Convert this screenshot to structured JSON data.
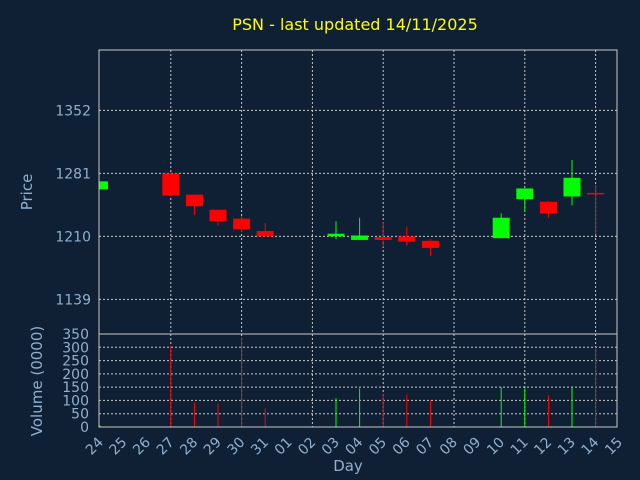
{
  "chart_data": {
    "type": "candlestick",
    "title": "PSN - last updated 14/11/2025",
    "ylabel": "Price",
    "ylabel_volume": "Volume (0000)",
    "xlabel": "Day",
    "colors": {
      "up": "#00ff00",
      "down": "#ff0000",
      "background": "#0f2034",
      "grid": "#c8c8c8",
      "title": "#ffff00",
      "axis_text": "#8fb0d0"
    },
    "grid": true,
    "price_ticks": [
      1139,
      1210,
      1281,
      1352
    ],
    "price_ylim": [
      1100,
      1420
    ],
    "volume_ticks": [
      0,
      50,
      100,
      150,
      200,
      250,
      300,
      350
    ],
    "volume_ylim": [
      0,
      350
    ],
    "x_labels": [
      "24",
      "25",
      "26",
      "27",
      "28",
      "29",
      "30",
      "31",
      "01",
      "02",
      "03",
      "04",
      "05",
      "06",
      "07",
      "08",
      "09",
      "10",
      "11",
      "12",
      "13",
      "14",
      "15"
    ],
    "grid_days": [
      2,
      5,
      8,
      11,
      14,
      17,
      20
    ],
    "candles": [
      {
        "day": 0,
        "open": 1263,
        "high": 1272,
        "low": 1263,
        "close": 1272,
        "volume": 5
      },
      {
        "day": 3,
        "open": 1281,
        "high": 1282,
        "low": 1255,
        "close": 1256,
        "volume": 305
      },
      {
        "day": 4,
        "open": 1257,
        "high": 1257,
        "low": 1234,
        "close": 1244,
        "volume": 92
      },
      {
        "day": 5,
        "open": 1240,
        "high": 1240,
        "low": 1222,
        "close": 1227,
        "volume": 88
      },
      {
        "day": 6,
        "open": 1230,
        "high": 1233,
        "low": 1215,
        "close": 1218,
        "volume": 337
      },
      {
        "day": 7,
        "open": 1216,
        "high": 1225,
        "low": 1210,
        "close": 1210,
        "volume": 70
      },
      {
        "day": 10,
        "open": 1210,
        "high": 1227,
        "low": 1207,
        "close": 1213,
        "volume": 108
      },
      {
        "day": 11,
        "open": 1206,
        "high": 1231,
        "low": 1206,
        "close": 1211,
        "volume": 145
      },
      {
        "day": 12,
        "open": 1209,
        "high": 1226,
        "low": 1198,
        "close": 1206,
        "volume": 125
      },
      {
        "day": 13,
        "open": 1210,
        "high": 1221,
        "low": 1200,
        "close": 1204,
        "volume": 122
      },
      {
        "day": 14,
        "open": 1205,
        "high": 1207,
        "low": 1188,
        "close": 1197,
        "volume": 100
      },
      {
        "day": 17,
        "open": 1208,
        "high": 1236,
        "low": 1208,
        "close": 1231,
        "volume": 150
      },
      {
        "day": 18,
        "open": 1252,
        "high": 1264,
        "low": 1238,
        "close": 1264,
        "volume": 145
      },
      {
        "day": 19,
        "open": 1249,
        "high": 1250,
        "low": 1231,
        "close": 1236,
        "volume": 120
      },
      {
        "day": 20,
        "open": 1255,
        "high": 1296,
        "low": 1245,
        "close": 1276,
        "volume": 150
      },
      {
        "day": 21,
        "open": 1259,
        "high": 1268,
        "low": 1212,
        "close": 1258,
        "volume": 300
      }
    ]
  }
}
